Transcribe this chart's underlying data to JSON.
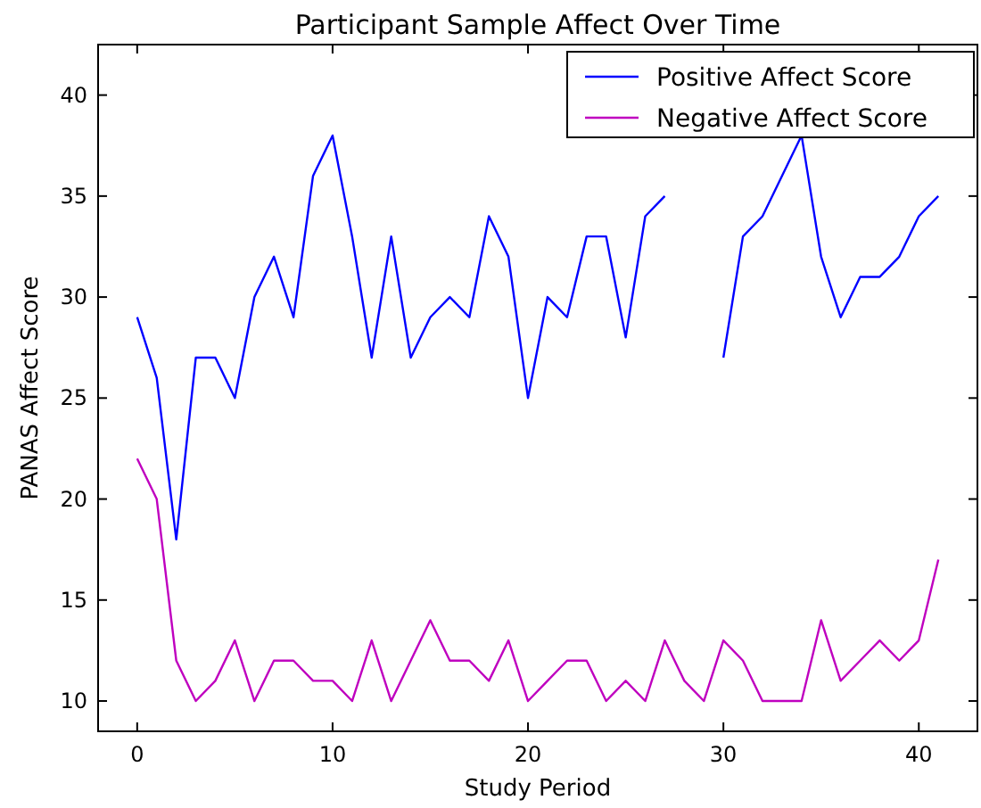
{
  "chart_data": {
    "type": "line",
    "title": "Participant Sample Affect Over Time",
    "xlabel": "Study Period",
    "ylabel": "PANAS Affect Score",
    "x": [
      0,
      1,
      2,
      3,
      4,
      5,
      6,
      7,
      8,
      9,
      10,
      11,
      12,
      13,
      14,
      15,
      16,
      17,
      18,
      19,
      20,
      21,
      22,
      23,
      24,
      25,
      26,
      27,
      28,
      29,
      30,
      31,
      32,
      33,
      34,
      35,
      36,
      37,
      38,
      39,
      40,
      41
    ],
    "series": [
      {
        "name": "Positive Affect Score",
        "color": "#0000ff",
        "values": [
          29,
          26,
          18,
          27,
          27,
          25,
          30,
          32,
          29,
          36,
          38,
          33,
          27,
          33,
          27,
          29,
          30,
          29,
          34,
          32,
          25,
          30,
          29,
          33,
          33,
          28,
          34,
          35,
          null,
          null,
          27,
          33,
          34,
          36,
          38,
          32,
          29,
          31,
          31,
          32,
          34,
          35
        ]
      },
      {
        "name": "Negative Affect Score",
        "color": "#bf00bf",
        "values": [
          22,
          20,
          12,
          10,
          11,
          13,
          10,
          12,
          12,
          11,
          11,
          10,
          13,
          10,
          12,
          14,
          12,
          12,
          11,
          13,
          10,
          11,
          12,
          12,
          10,
          11,
          10,
          13,
          11,
          10,
          13,
          12,
          10,
          10,
          10,
          14,
          11,
          12,
          13,
          12,
          13,
          17
        ]
      }
    ],
    "xlim": [
      -2,
      43
    ],
    "ylim": [
      8.5,
      42.5
    ],
    "xticks": [
      0,
      10,
      20,
      30,
      40
    ],
    "yticks": [
      10,
      15,
      20,
      25,
      30,
      35,
      40
    ],
    "grid": false,
    "legend": "top right",
    "marker": "none",
    "line_style": "solid"
  }
}
